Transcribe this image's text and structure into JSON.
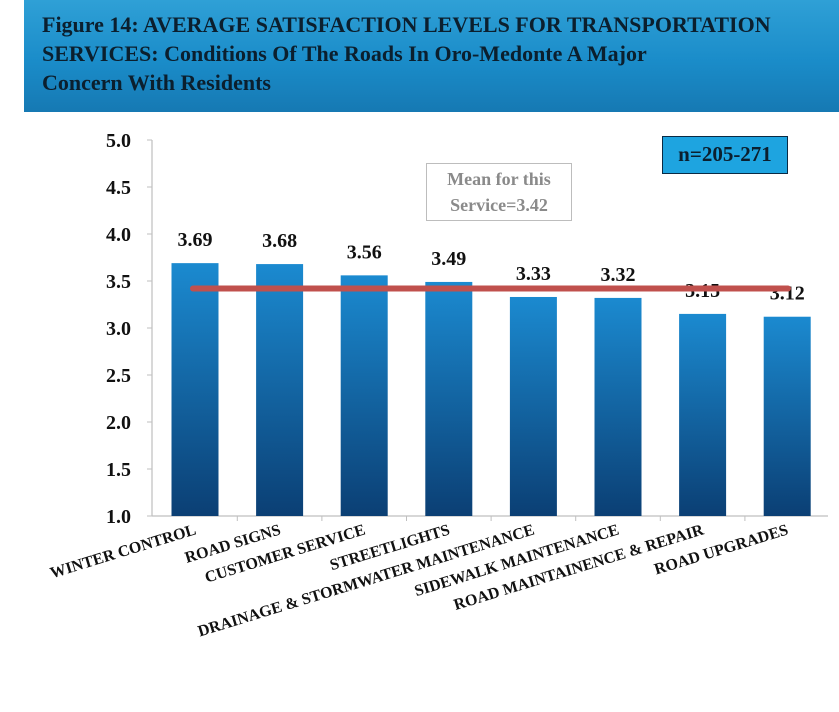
{
  "header": {
    "line1": "Figure 14: AVERAGE SATISFACTION LEVELS FOR TRANSPORTATION",
    "line2": "SERVICES: Conditions Of  The Roads In Oro-Medonte A Major",
    "line3": "Concern With Residents"
  },
  "sample_label": "n=205-271",
  "mean_label": {
    "line1": "Mean for this",
    "line2": "Service=3.42"
  },
  "chart_data": {
    "type": "bar",
    "categories": [
      "WINTER CONTROL",
      "ROAD SIGNS",
      "CUSTOMER SERVICE",
      "STREETLIGHTS",
      "DRAINAGE & STORMWATER MAINTENANCE",
      "SIDEWALK MAINTENANCE",
      "ROAD MAINTAINENCE & REPAIR",
      "ROAD UPGRADES"
    ],
    "values": [
      3.69,
      3.68,
      3.56,
      3.49,
      3.33,
      3.32,
      3.15,
      3.12
    ],
    "data_labels": [
      "3.69",
      "3.68",
      "3.56",
      "3.49",
      "3.33",
      "3.32",
      "3.15",
      "3.12"
    ],
    "mean": 3.42,
    "ylim": [
      1.0,
      5.0
    ],
    "yticks": [
      "1.0",
      "1.5",
      "2.0",
      "2.5",
      "3.0",
      "3.5",
      "4.0",
      "4.5",
      "5.0"
    ],
    "title": "",
    "xlabel": "",
    "ylabel": "",
    "colors": {
      "bar_top": "#1b8ad0",
      "bar_bottom": "#0b3f74",
      "mean_line": "#c0504d",
      "axis": "#bfbfbf"
    }
  }
}
